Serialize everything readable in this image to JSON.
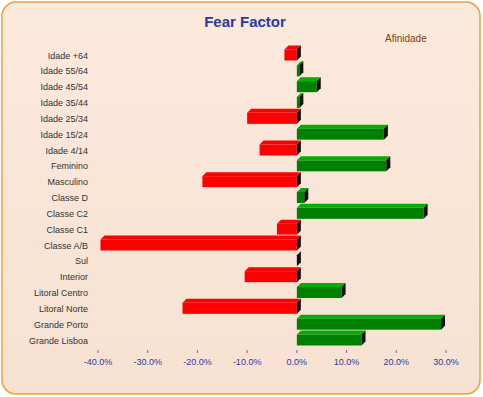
{
  "chart_data": {
    "type": "bar",
    "orientation": "horizontal",
    "title": "Fear Factor",
    "subtitle": "Afinidade",
    "categories": [
      "Idade +64",
      "Idade 55/64",
      "Idade 45/54",
      "Idade 35/44",
      "Idade 25/34",
      "Idade 15/24",
      "Idade 4/14",
      "Feminino",
      "Masculino",
      "Classe D",
      "Classe C2",
      "Classe C1",
      "Classe A/B",
      "Sul",
      "Interior",
      "Litoral Centro",
      "Litoral Norte",
      "Grande Porto",
      "Grande Lisboa"
    ],
    "values": [
      -2.5,
      0.5,
      4,
      0.5,
      -10,
      17.5,
      -7.5,
      18,
      -19,
      1.5,
      25.5,
      -4,
      -39.5,
      0,
      -10.5,
      9,
      -23,
      29,
      13
    ],
    "colors": [
      "#ff0000",
      "#008000",
      "#008000",
      "#008000",
      "#ff0000",
      "#008000",
      "#ff0000",
      "#008000",
      "#ff0000",
      "#008000",
      "#008000",
      "#ff0000",
      "#ff0000",
      "#008000",
      "#ff0000",
      "#008000",
      "#ff0000",
      "#008000",
      "#008000"
    ],
    "xlim": [
      -40,
      30
    ],
    "xticks": [
      {
        "value": -40,
        "label": "-40.0%"
      },
      {
        "value": -30,
        "label": "-30.0%"
      },
      {
        "value": -20,
        "label": "-20.0%"
      },
      {
        "value": -10,
        "label": "-10.0%"
      },
      {
        "value": 0,
        "label": "0.0%"
      },
      {
        "value": 10,
        "label": "10.0%"
      },
      {
        "value": 20,
        "label": "20.0%"
      },
      {
        "value": 30,
        "label": "30.0%"
      }
    ],
    "grid": false
  }
}
